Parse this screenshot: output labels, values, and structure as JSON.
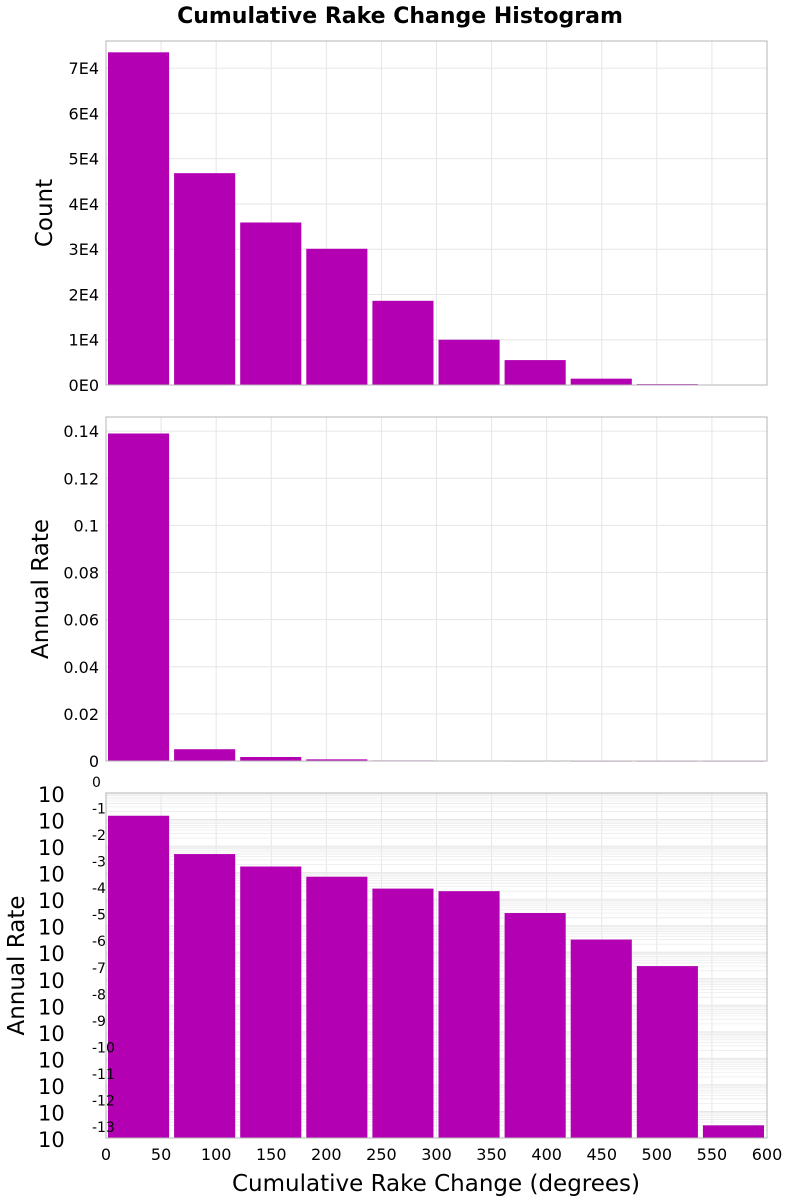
{
  "chart_data": {
    "title": "Cumulative Rake Change Histogram",
    "xlabel": "Cumulative Rake Change (degrees)",
    "xlim": [
      0,
      600
    ],
    "x_ticks": [
      "0",
      "50",
      "100",
      "150",
      "200",
      "250",
      "300",
      "350",
      "400",
      "450",
      "500",
      "550",
      "600"
    ],
    "bin_width": 60,
    "bin_centers": [
      30,
      90,
      150,
      210,
      270,
      330,
      390,
      450,
      510,
      570
    ],
    "bar_color": "#b300b3",
    "panels": [
      {
        "type": "bar",
        "ylabel": "Count",
        "scale": "linear",
        "ylim": [
          0,
          76000
        ],
        "y_ticks": [
          {
            "value": 0,
            "label": "0E0"
          },
          {
            "value": 10000,
            "label": "1E4"
          },
          {
            "value": 20000,
            "label": "2E4"
          },
          {
            "value": 30000,
            "label": "3E4"
          },
          {
            "value": 40000,
            "label": "4E4"
          },
          {
            "value": 50000,
            "label": "5E4"
          },
          {
            "value": 60000,
            "label": "6E4"
          },
          {
            "value": 70000,
            "label": "7E4"
          }
        ],
        "values": [
          73500,
          46800,
          35900,
          30100,
          18600,
          10000,
          5500,
          1400,
          200,
          20
        ]
      },
      {
        "type": "bar",
        "ylabel": "Annual Rate",
        "scale": "linear",
        "ylim": [
          0,
          0.146
        ],
        "y_ticks": [
          {
            "value": 0,
            "label": "0"
          },
          {
            "value": 0.02,
            "label": "0.02"
          },
          {
            "value": 0.04,
            "label": "0.04"
          },
          {
            "value": 0.06,
            "label": "0.06"
          },
          {
            "value": 0.08,
            "label": "0.08"
          },
          {
            "value": 0.1,
            "label": "0.1"
          },
          {
            "value": 0.12,
            "label": "0.12"
          },
          {
            "value": 0.14,
            "label": "0.14"
          }
        ],
        "values": [
          0.139,
          0.005,
          0.0017,
          0.0007,
          0.00025,
          0.0002,
          3e-05,
          3e-06,
          3e-07,
          3e-13
        ]
      },
      {
        "type": "bar",
        "ylabel": "Annual Rate",
        "scale": "log",
        "ylim_exp": [
          -13,
          0
        ],
        "y_ticks": [
          {
            "exp": 0,
            "base": "10",
            "sup": "0"
          },
          {
            "exp": -1,
            "base": "10",
            "sup": "-1"
          },
          {
            "exp": -2,
            "base": "10",
            "sup": "-2"
          },
          {
            "exp": -3,
            "base": "10",
            "sup": "-3"
          },
          {
            "exp": -4,
            "base": "10",
            "sup": "-4"
          },
          {
            "exp": -5,
            "base": "10",
            "sup": "-5"
          },
          {
            "exp": -6,
            "base": "10",
            "sup": "-6"
          },
          {
            "exp": -7,
            "base": "10",
            "sup": "-7"
          },
          {
            "exp": -8,
            "base": "10",
            "sup": "-8"
          },
          {
            "exp": -9,
            "base": "10",
            "sup": "-9"
          },
          {
            "exp": -10,
            "base": "10",
            "sup": "-10"
          },
          {
            "exp": -11,
            "base": "10",
            "sup": "-11"
          },
          {
            "exp": -12,
            "base": "10",
            "sup": "-12"
          },
          {
            "exp": -13,
            "base": "10",
            "sup": "-13"
          }
        ],
        "values": [
          0.139,
          0.005,
          0.0017,
          0.0007,
          0.00025,
          0.0002,
          3e-05,
          3e-06,
          3e-07,
          3e-13
        ]
      }
    ]
  }
}
